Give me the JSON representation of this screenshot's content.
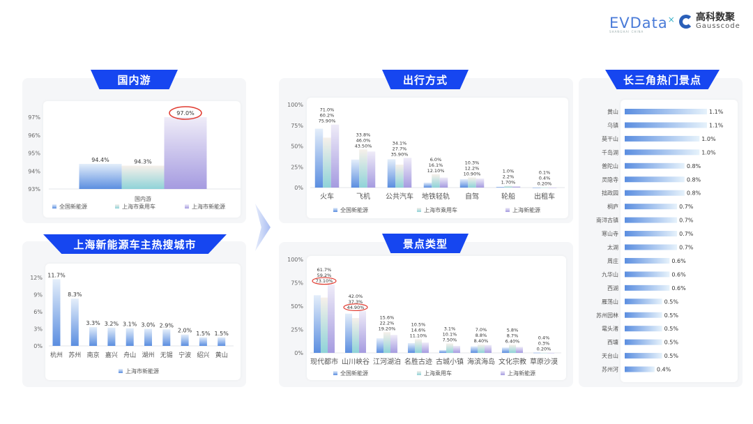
{
  "logos": {
    "evdata": "EVData",
    "evdata_sub": "SHANGHAI CHINA",
    "gauss_cn": "高科数聚",
    "gauss_en": "Gausscode"
  },
  "colors": {
    "banner": "#1646f0",
    "series": [
      "#5b8ee0",
      "#8fd3d8",
      "#a59be0"
    ],
    "highlight": "#e03a2f"
  },
  "chart_data": [
    {
      "id": "domestic",
      "title": "国内游",
      "type": "bar",
      "categories": [
        "国内游"
      ],
      "ylim": [
        93,
        97
      ],
      "yticks": [
        "93%",
        "94%",
        "95%",
        "96%",
        "97%"
      ],
      "series": [
        {
          "name": "全国新能源",
          "values": [
            94.4
          ],
          "labels": [
            "94.4%"
          ]
        },
        {
          "name": "上海市乘用车",
          "values": [
            94.3
          ],
          "labels": [
            "94.3%"
          ]
        },
        {
          "name": "上海市新能源",
          "values": [
            97.0
          ],
          "labels": [
            "97.0%"
          ],
          "highlight": [
            0
          ]
        }
      ],
      "legend": "bottom"
    },
    {
      "id": "cities",
      "title": "上海新能源车主热搜城市",
      "type": "bar",
      "categories": [
        "杭州",
        "苏州",
        "南京",
        "嘉兴",
        "舟山",
        "湖州",
        "无锡",
        "宁波",
        "绍兴",
        "黄山"
      ],
      "ylim": [
        0,
        13
      ],
      "yticks": [
        "0%",
        "3%",
        "6%",
        "9%",
        "12%"
      ],
      "series": [
        {
          "name": "上海市新能源",
          "values": [
            11.7,
            8.3,
            3.3,
            3.2,
            3.1,
            3.0,
            2.9,
            2.0,
            1.5,
            1.5
          ],
          "labels": [
            "11.7%",
            "8.3%",
            "3.3%",
            "3.2%",
            "3.1%",
            "3.0%",
            "2.9%",
            "2.0%",
            "1.5%",
            "1.5%"
          ]
        }
      ],
      "legend": "bottom"
    },
    {
      "id": "travel-mode",
      "title": "出行方式",
      "type": "bar",
      "categories": [
        "火车",
        "飞机",
        "公共汽车",
        "地铁轻轨",
        "自驾",
        "轮船",
        "出租车"
      ],
      "ylim": [
        0,
        100
      ],
      "yticks": [
        "0%",
        "25%",
        "50%",
        "75%",
        "100%"
      ],
      "series": [
        {
          "name": "全国新能源",
          "values": [
            71.0,
            33.8,
            34.1,
            6.0,
            10.3,
            1.0,
            0.1
          ],
          "labels": [
            "71.0%",
            "33.8%",
            "34.1%",
            "6.0%",
            "10.3%",
            "1.0%",
            "0.1%"
          ]
        },
        {
          "name": "上海市乘用车",
          "values": [
            60.2,
            46.0,
            27.7,
            16.1,
            12.2,
            2.2,
            0.4
          ],
          "labels": [
            "60.2%",
            "46.0%",
            "27.7%",
            "16.1%",
            "12.2%",
            "2.2%",
            "0.4%"
          ]
        },
        {
          "name": "上海新能源",
          "values": [
            75.9,
            43.5,
            35.9,
            12.1,
            10.9,
            1.7,
            0.2
          ],
          "labels": [
            "75.90%",
            "43.50%",
            "35.90%",
            "12.10%",
            "10.90%",
            "1.70%",
            "0.20%"
          ]
        }
      ],
      "legend": "bottom"
    },
    {
      "id": "scenic-type",
      "title": "景点类型",
      "type": "bar",
      "categories": [
        "现代都市",
        "山川峡谷",
        "江河湖泊",
        "名胜古迹",
        "古城小镇",
        "海滨海岛",
        "文化宗教",
        "草原沙漠"
      ],
      "ylim": [
        0,
        100
      ],
      "yticks": [
        "0%",
        "25%",
        "50%",
        "75%",
        "100%"
      ],
      "series": [
        {
          "name": "全国新能源",
          "values": [
            61.7,
            42.0,
            15.6,
            10.5,
            3.1,
            7.0,
            5.8,
            0.4
          ],
          "labels": [
            "61.7%",
            "42.0%",
            "15.6%",
            "10.5%",
            "3.1%",
            "7.0%",
            "5.8%",
            "0.4%"
          ]
        },
        {
          "name": "上海乘用车",
          "values": [
            59.2,
            37.3,
            22.2,
            14.6,
            10.1,
            8.8,
            8.7,
            0.3
          ],
          "labels": [
            "59.2%",
            "37.3%",
            "22.2%",
            "14.6%",
            "10.1%",
            "8.8%",
            "8.7%",
            "0.3%"
          ]
        },
        {
          "name": "上海新能源",
          "values": [
            73.1,
            44.9,
            19.2,
            11.1,
            7.5,
            8.4,
            6.4,
            0.2
          ],
          "labels": [
            "73.10%",
            "44.90%",
            "19.20%",
            "11.10%",
            "7.50%",
            "8.40%",
            "6.40%",
            "0.20%"
          ],
          "highlight": [
            0,
            1
          ]
        }
      ],
      "legend": "bottom"
    },
    {
      "id": "hot-spots",
      "title": "长三角热门景点",
      "type": "bar",
      "orientation": "horizontal",
      "categories": [
        "黄山",
        "乌镇",
        "莫干山",
        "千岛湖",
        "普陀山",
        "灵隐寺",
        "拙政园",
        "桐庐",
        "南浔古镇",
        "寒山寺",
        "太湖",
        "周庄",
        "九华山",
        "西湖",
        "雁荡山",
        "苏州园林",
        "鼋头渚",
        "西塘",
        "天台山",
        "苏州河"
      ],
      "values": [
        1.1,
        1.1,
        1.0,
        1.0,
        0.8,
        0.8,
        0.8,
        0.7,
        0.7,
        0.7,
        0.7,
        0.6,
        0.6,
        0.6,
        0.5,
        0.5,
        0.5,
        0.5,
        0.5,
        0.4
      ],
      "labels": [
        "1.1%",
        "1.1%",
        "1.0%",
        "1.0%",
        "0.8%",
        "0.8%",
        "0.8%",
        "0.7%",
        "0.7%",
        "0.7%",
        "0.7%",
        "0.6%",
        "0.6%",
        "0.6%",
        "0.5%",
        "0.5%",
        "0.5%",
        "0.5%",
        "0.5%",
        "0.4%"
      ]
    }
  ]
}
